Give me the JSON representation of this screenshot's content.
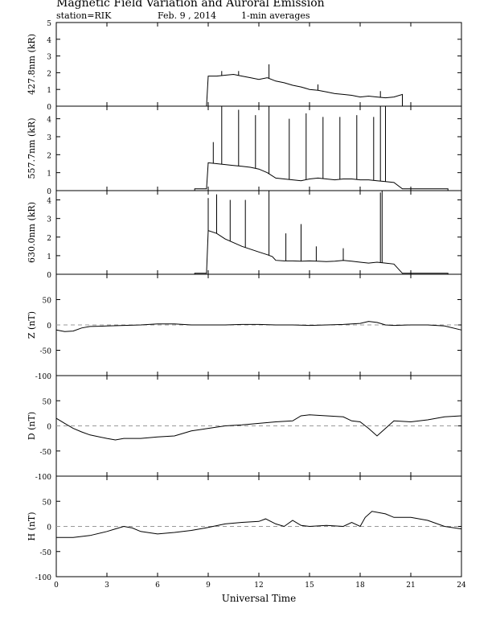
{
  "header": {
    "title": "Magnetic Field Variation and Auroral Emission",
    "station": "station=RIK",
    "date": "Feb. 9  , 2014",
    "averaging": "1-min averages"
  },
  "chart_data": [
    {
      "type": "line",
      "ylabel": "427.8nm (kR)",
      "xlim": [
        0,
        24
      ],
      "ylim": [
        0,
        5
      ],
      "yticks": [
        0,
        1,
        2,
        3,
        4,
        5
      ],
      "x": [
        8.9,
        9.0,
        9.5,
        10.0,
        10.5,
        11.0,
        11.5,
        12.0,
        12.5,
        13.0,
        13.5,
        14.0,
        14.5,
        15.0,
        15.5,
        16.0,
        16.5,
        17.0,
        17.5,
        18.0,
        18.5,
        19.0,
        19.5,
        20.0,
        20.5
      ],
      "values": [
        0.0,
        1.8,
        1.8,
        1.85,
        1.9,
        1.8,
        1.7,
        1.6,
        1.7,
        1.5,
        1.4,
        1.25,
        1.15,
        1.0,
        0.95,
        0.85,
        0.75,
        0.7,
        0.65,
        0.55,
        0.6,
        0.55,
        0.5,
        0.55,
        0.7
      ],
      "spikes": [
        [
          9.8,
          2.1
        ],
        [
          10.8,
          2.1
        ],
        [
          12.6,
          2.5
        ],
        [
          15.5,
          1.3
        ],
        [
          19.2,
          0.9
        ]
      ],
      "baseline_end": 20.5
    },
    {
      "type": "line",
      "ylabel": "557.7nm (kR)",
      "xlim": [
        0,
        24
      ],
      "ylim": [
        0,
        4.7
      ],
      "yticks": [
        0,
        1,
        2,
        3,
        4
      ],
      "x": [
        8.2,
        8.9,
        9.0,
        9.5,
        10.0,
        10.5,
        11.0,
        11.5,
        12.0,
        12.5,
        13.0,
        13.5,
        14.0,
        14.5,
        15.0,
        15.5,
        16.0,
        16.5,
        17.0,
        17.5,
        18.0,
        18.5,
        19.0,
        19.5,
        20.0,
        20.5,
        23.2
      ],
      "values": [
        0.1,
        0.1,
        1.55,
        1.5,
        1.45,
        1.4,
        1.35,
        1.3,
        1.2,
        1.0,
        0.7,
        0.65,
        0.6,
        0.55,
        0.65,
        0.7,
        0.65,
        0.6,
        0.65,
        0.65,
        0.6,
        0.6,
        0.55,
        0.5,
        0.45,
        0.1,
        0.1
      ],
      "spikes": [
        [
          9.3,
          2.7
        ],
        [
          9.8,
          4.7
        ],
        [
          10.8,
          4.5
        ],
        [
          11.8,
          4.2
        ],
        [
          12.6,
          4.7
        ],
        [
          13.8,
          4.0
        ],
        [
          14.8,
          4.3
        ],
        [
          15.8,
          4.1
        ],
        [
          16.8,
          4.1
        ],
        [
          17.8,
          4.2
        ],
        [
          18.8,
          4.1
        ],
        [
          19.2,
          4.7
        ],
        [
          19.5,
          4.7
        ]
      ],
      "baseline_end": 23.2
    },
    {
      "type": "line",
      "ylabel": "630.0nm (kR)",
      "xlim": [
        0,
        24
      ],
      "ylim": [
        0,
        4.5
      ],
      "yticks": [
        0,
        1,
        2,
        3,
        4
      ],
      "x": [
        8.2,
        8.9,
        9.0,
        9.5,
        10.0,
        10.5,
        11.0,
        11.5,
        12.0,
        12.5,
        12.8,
        13.0,
        13.5,
        14.0,
        14.5,
        15.0,
        15.5,
        16.0,
        16.5,
        17.0,
        17.5,
        18.0,
        18.5,
        19.0,
        19.5,
        20.0,
        20.5,
        23.2
      ],
      "values": [
        0.05,
        0.05,
        2.35,
        2.2,
        1.9,
        1.7,
        1.5,
        1.35,
        1.2,
        1.05,
        0.95,
        0.75,
        0.72,
        0.72,
        0.7,
        0.72,
        0.7,
        0.68,
        0.7,
        0.75,
        0.7,
        0.65,
        0.6,
        0.65,
        0.6,
        0.55,
        0.05,
        0.05
      ],
      "spikes": [
        [
          9.0,
          4.1
        ],
        [
          9.5,
          4.3
        ],
        [
          10.3,
          4.0
        ],
        [
          11.2,
          4.0
        ],
        [
          12.6,
          4.5
        ],
        [
          13.6,
          2.2
        ],
        [
          14.5,
          2.7
        ],
        [
          15.4,
          1.5
        ],
        [
          17.0,
          1.4
        ],
        [
          19.2,
          4.4
        ],
        [
          19.3,
          4.5
        ]
      ],
      "baseline_end": 23.2
    },
    {
      "type": "line",
      "ylabel": "Z (nT)",
      "xlim": [
        0,
        24
      ],
      "ylim": [
        -100,
        100
      ],
      "yticks": [
        -100,
        -50,
        0,
        50
      ],
      "x": [
        0,
        0.5,
        1,
        1.5,
        2,
        3,
        4,
        5,
        6,
        7,
        8,
        9,
        10,
        11,
        12,
        13,
        14,
        15,
        16,
        17,
        18,
        18.5,
        19,
        19.5,
        20,
        21,
        22,
        23,
        24
      ],
      "values": [
        -10,
        -13,
        -12,
        -6,
        -3,
        -2,
        -1,
        0,
        2,
        2,
        0,
        0,
        0,
        1,
        1,
        0,
        0,
        -1,
        0,
        1,
        3,
        7,
        5,
        0,
        -1,
        0,
        0,
        -2,
        -10
      ]
    },
    {
      "type": "line",
      "ylabel": "D (nT)",
      "xlim": [
        0,
        24
      ],
      "ylim": [
        -100,
        100
      ],
      "yticks": [
        -100,
        -50,
        0,
        50
      ],
      "x": [
        0,
        0.5,
        1,
        1.5,
        2,
        3,
        3.5,
        4,
        5,
        6,
        7,
        7.5,
        8,
        9,
        10,
        11,
        12,
        13,
        14,
        14.5,
        15,
        16,
        17,
        17.5,
        18,
        18.5,
        19,
        19.5,
        20,
        21,
        22,
        23,
        24
      ],
      "values": [
        15,
        5,
        -5,
        -12,
        -18,
        -25,
        -28,
        -25,
        -25,
        -22,
        -20,
        -15,
        -10,
        -5,
        0,
        2,
        5,
        8,
        10,
        20,
        22,
        20,
        18,
        10,
        8,
        -5,
        -20,
        -5,
        10,
        8,
        12,
        18,
        20
      ]
    },
    {
      "type": "line",
      "ylabel": "H (nT)",
      "xlim": [
        0,
        24
      ],
      "ylim": [
        -100,
        100
      ],
      "yticks": [
        -100,
        -50,
        0,
        50
      ],
      "x": [
        0,
        1,
        2,
        3,
        3.5,
        4,
        4.5,
        5,
        6,
        7,
        8,
        9,
        10,
        11,
        12,
        12.4,
        13,
        13.5,
        14,
        14.5,
        15,
        16,
        17,
        17.5,
        18,
        18.3,
        18.7,
        19.5,
        20,
        21,
        22,
        23,
        24
      ],
      "values": [
        -22,
        -22,
        -18,
        -10,
        -5,
        0,
        -3,
        -10,
        -15,
        -12,
        -8,
        -2,
        5,
        8,
        10,
        15,
        5,
        0,
        12,
        2,
        0,
        2,
        0,
        8,
        0,
        18,
        30,
        25,
        18,
        18,
        12,
        0,
        -5
      ]
    }
  ],
  "xaxis": {
    "label": "Universal Time",
    "ticks": [
      0,
      3,
      6,
      9,
      12,
      15,
      18,
      21,
      24
    ]
  }
}
